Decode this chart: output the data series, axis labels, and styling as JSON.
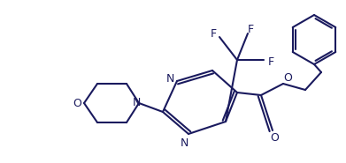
{
  "bg_color": "#ffffff",
  "line_color": "#1a1a5e",
  "lw": 1.5,
  "figsize": [
    3.91,
    1.85
  ],
  "dpi": 100,
  "xlim": [
    0,
    391
  ],
  "ylim": [
    0,
    185
  ]
}
